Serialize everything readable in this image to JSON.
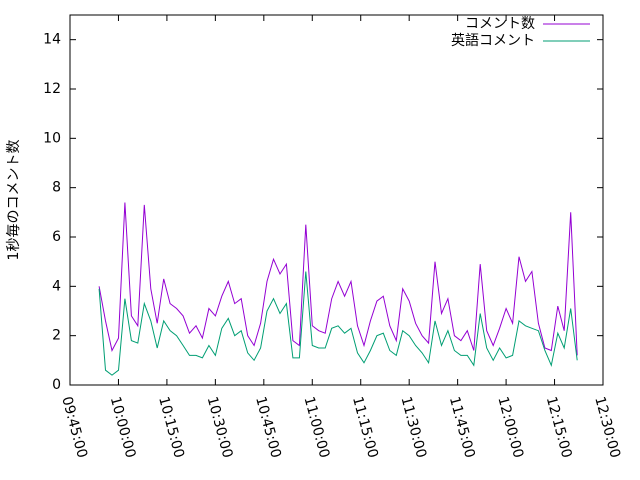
{
  "chart_data": {
    "type": "line",
    "y_label": "1秒毎のコメント数",
    "x": [
      "09:54:00",
      "09:56:00",
      "09:58:00",
      "10:00:00",
      "10:02:00",
      "10:04:00",
      "10:06:00",
      "10:08:00",
      "10:10:00",
      "10:12:00",
      "10:14:00",
      "10:16:00",
      "10:18:00",
      "10:20:00",
      "10:22:00",
      "10:24:00",
      "10:26:00",
      "10:28:00",
      "10:30:00",
      "10:32:00",
      "10:34:00",
      "10:36:00",
      "10:38:00",
      "10:40:00",
      "10:42:00",
      "10:44:00",
      "10:46:00",
      "10:48:00",
      "10:50:00",
      "10:52:00",
      "10:54:00",
      "10:56:00",
      "10:58:00",
      "11:00:00",
      "11:02:00",
      "11:04:00",
      "11:06:00",
      "11:08:00",
      "11:10:00",
      "11:12:00",
      "11:14:00",
      "11:16:00",
      "11:18:00",
      "11:20:00",
      "11:22:00",
      "11:24:00",
      "11:26:00",
      "11:28:00",
      "11:30:00",
      "11:32:00",
      "11:34:00",
      "11:36:00",
      "11:38:00",
      "11:40:00",
      "11:42:00",
      "11:44:00",
      "11:46:00",
      "11:48:00",
      "11:50:00",
      "11:52:00",
      "11:54:00",
      "11:56:00",
      "11:58:00",
      "12:00:00",
      "12:02:00",
      "12:04:00",
      "12:06:00",
      "12:08:00",
      "12:10:00",
      "12:12:00",
      "12:14:00",
      "12:16:00",
      "12:18:00",
      "12:20:00",
      "12:22:00"
    ],
    "series": [
      {
        "name": "コメント数",
        "color": "#9400d3",
        "values": [
          4.0,
          2.6,
          1.4,
          1.9,
          7.4,
          2.8,
          2.4,
          7.3,
          3.9,
          2.5,
          4.3,
          3.3,
          3.1,
          2.8,
          2.1,
          2.4,
          1.9,
          3.1,
          2.8,
          3.6,
          4.2,
          3.3,
          3.5,
          2.0,
          1.6,
          2.5,
          4.2,
          5.1,
          4.5,
          4.9,
          1.8,
          1.6,
          6.5,
          2.4,
          2.2,
          2.1,
          3.5,
          4.2,
          3.6,
          4.2,
          2.4,
          1.6,
          2.6,
          3.4,
          3.6,
          2.4,
          1.8,
          3.9,
          3.4,
          2.5,
          2.0,
          1.7,
          5.0,
          2.9,
          3.5,
          2.0,
          1.8,
          2.2,
          1.4,
          4.9,
          2.2,
          1.6,
          2.3,
          3.1,
          2.5,
          5.2,
          4.2,
          4.6,
          2.5,
          1.5,
          1.4,
          3.2,
          2.2,
          7.0,
          1.2
        ]
      },
      {
        "name": "英語コメント",
        "color": "#009e73",
        "values": [
          3.9,
          0.6,
          0.4,
          0.6,
          3.5,
          1.8,
          1.7,
          3.3,
          2.6,
          1.5,
          2.6,
          2.2,
          2.0,
          1.6,
          1.2,
          1.2,
          1.1,
          1.6,
          1.2,
          2.3,
          2.7,
          2.0,
          2.2,
          1.3,
          1.0,
          1.5,
          3.0,
          3.5,
          2.9,
          3.3,
          1.1,
          1.1,
          4.6,
          1.6,
          1.5,
          1.5,
          2.3,
          2.4,
          2.1,
          2.3,
          1.3,
          0.9,
          1.4,
          2.0,
          2.1,
          1.4,
          1.2,
          2.2,
          2.0,
          1.6,
          1.3,
          0.9,
          2.6,
          1.6,
          2.2,
          1.4,
          1.2,
          1.2,
          0.8,
          2.9,
          1.5,
          1.0,
          1.5,
          1.1,
          1.2,
          2.6,
          2.4,
          2.3,
          2.2,
          1.4,
          0.8,
          2.1,
          1.5,
          3.1,
          1.0
        ]
      }
    ],
    "xlim": [
      "09:45:00",
      "12:30:00"
    ],
    "xticks": [
      "09:45:00",
      "10:00:00",
      "10:15:00",
      "10:30:00",
      "10:45:00",
      "11:00:00",
      "11:15:00",
      "11:30:00",
      "11:45:00",
      "12:00:00",
      "12:15:00",
      "12:30:00"
    ],
    "ylim": [
      0,
      15
    ],
    "yticks": [
      0,
      2,
      4,
      6,
      8,
      10,
      12,
      14
    ],
    "legend": "top-right"
  }
}
